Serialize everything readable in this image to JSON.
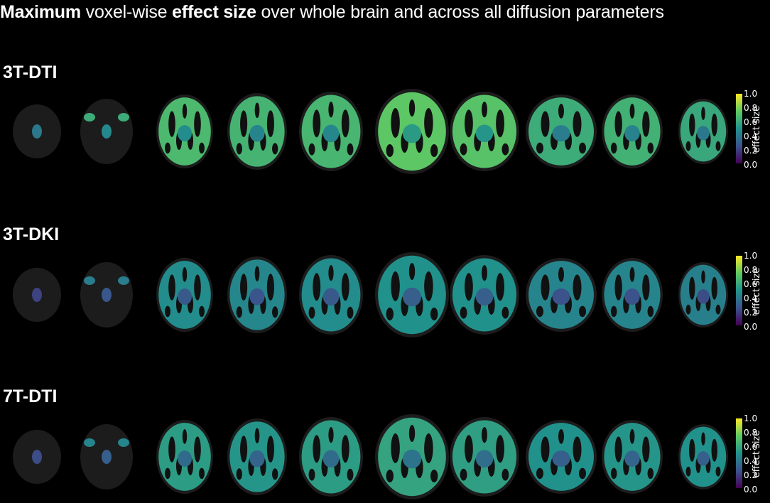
{
  "title": {
    "part1": "Maximum",
    "part2": " voxel-wise ",
    "part3": "effect size",
    "part4": " over whole brain and across all diffusion parameters"
  },
  "rows": [
    {
      "label": "3T-DTI",
      "intensity": [
        0.55,
        0.62,
        0.68,
        0.65,
        0.66,
        0.74,
        0.72,
        0.62,
        0.64,
        0.6
      ]
    },
    {
      "label": "3T-DKI",
      "intensity": [
        0.35,
        0.42,
        0.48,
        0.46,
        0.48,
        0.5,
        0.5,
        0.45,
        0.45,
        0.43
      ]
    },
    {
      "label": "7T-DTI",
      "intensity": [
        0.38,
        0.45,
        0.55,
        0.52,
        0.55,
        0.58,
        0.56,
        0.5,
        0.52,
        0.5
      ]
    }
  ],
  "colorbar": {
    "label": "effect size",
    "ticks": [
      "1.0",
      "0.8",
      "0.6",
      "0.4",
      "0.2",
      "0.0"
    ]
  }
}
